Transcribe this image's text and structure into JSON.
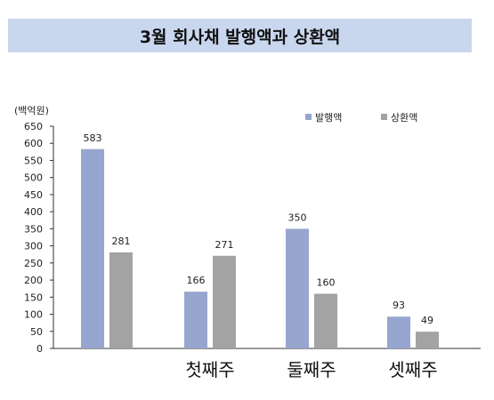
{
  "chart_data": {
    "type": "bar",
    "title": "3월 회사채 발행액과 상환액",
    "ylabel": "(백억원)",
    "categories": [
      "",
      "첫째주",
      "둘째주",
      "셋째주"
    ],
    "series": [
      {
        "name": "발행액",
        "values": [
          583,
          166,
          350,
          93
        ],
        "color": "#97a6cf"
      },
      {
        "name": "상환액",
        "values": [
          281,
          271,
          160,
          49
        ],
        "color": "#a3a3a3"
      }
    ],
    "ylim": [
      0,
      650
    ],
    "yticks": [
      0,
      50,
      100,
      150,
      200,
      250,
      300,
      350,
      400,
      450,
      500,
      550,
      600,
      650
    ],
    "grid": false,
    "legend_position": "top-right"
  }
}
